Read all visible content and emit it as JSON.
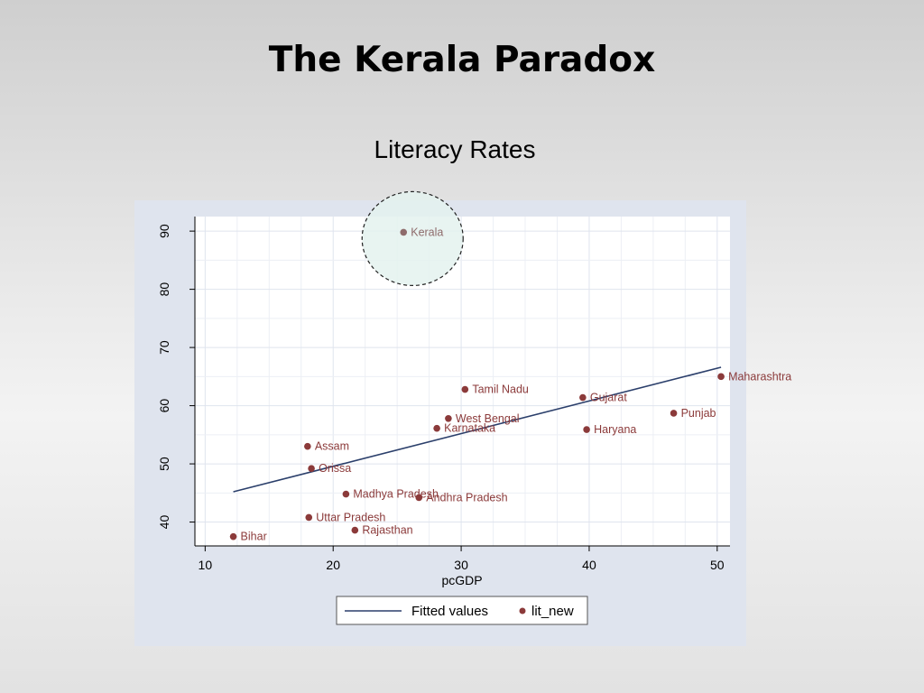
{
  "slide": {
    "title": "The Kerala Paradox"
  },
  "chart_data": {
    "type": "scatter",
    "title": "Literacy Rates",
    "xlabel": "pcGDP",
    "ylabel": "",
    "xlim": [
      9.2,
      51
    ],
    "ylim": [
      35.9,
      92.5
    ],
    "xticks": [
      10,
      20,
      30,
      40,
      50
    ],
    "yticks": [
      40,
      50,
      60,
      70,
      80,
      90
    ],
    "grid": true,
    "legend_position": "bottom",
    "series": [
      {
        "name": "lit_new",
        "color": "#8b3a3a",
        "points": [
          {
            "label": "Kerala",
            "x": 25.5,
            "y": 89.8
          },
          {
            "label": "Maharashtra",
            "x": 50.3,
            "y": 65.0
          },
          {
            "label": "Tamil Nadu",
            "x": 30.3,
            "y": 62.8
          },
          {
            "label": "Gujarat",
            "x": 39.5,
            "y": 61.4
          },
          {
            "label": "Punjab",
            "x": 46.6,
            "y": 58.7
          },
          {
            "label": "West Bengal",
            "x": 29.0,
            "y": 57.8
          },
          {
            "label": "Karnataka",
            "x": 28.1,
            "y": 56.1
          },
          {
            "label": "Haryana",
            "x": 39.8,
            "y": 55.9
          },
          {
            "label": "Assam",
            "x": 18.0,
            "y": 53.0
          },
          {
            "label": "Orissa",
            "x": 18.3,
            "y": 49.2
          },
          {
            "label": "Madhya Pradesh",
            "x": 21.0,
            "y": 44.8
          },
          {
            "label": "Andhra Pradesh",
            "x": 26.7,
            "y": 44.2
          },
          {
            "label": "Uttar Pradesh",
            "x": 18.1,
            "y": 40.8
          },
          {
            "label": "Rajasthan",
            "x": 21.7,
            "y": 38.6
          },
          {
            "label": "Bihar",
            "x": 12.2,
            "y": 37.5
          }
        ]
      },
      {
        "name": "Fitted values",
        "type": "line",
        "color": "#2b3f6b",
        "points": [
          {
            "x": 12.2,
            "y": 45.2
          },
          {
            "x": 50.3,
            "y": 66.6
          }
        ]
      }
    ],
    "highlight": {
      "label": "Kerala",
      "shape": "dashed circle"
    }
  },
  "legend": {
    "fitted_label": "Fitted values",
    "points_label": "lit_new"
  }
}
